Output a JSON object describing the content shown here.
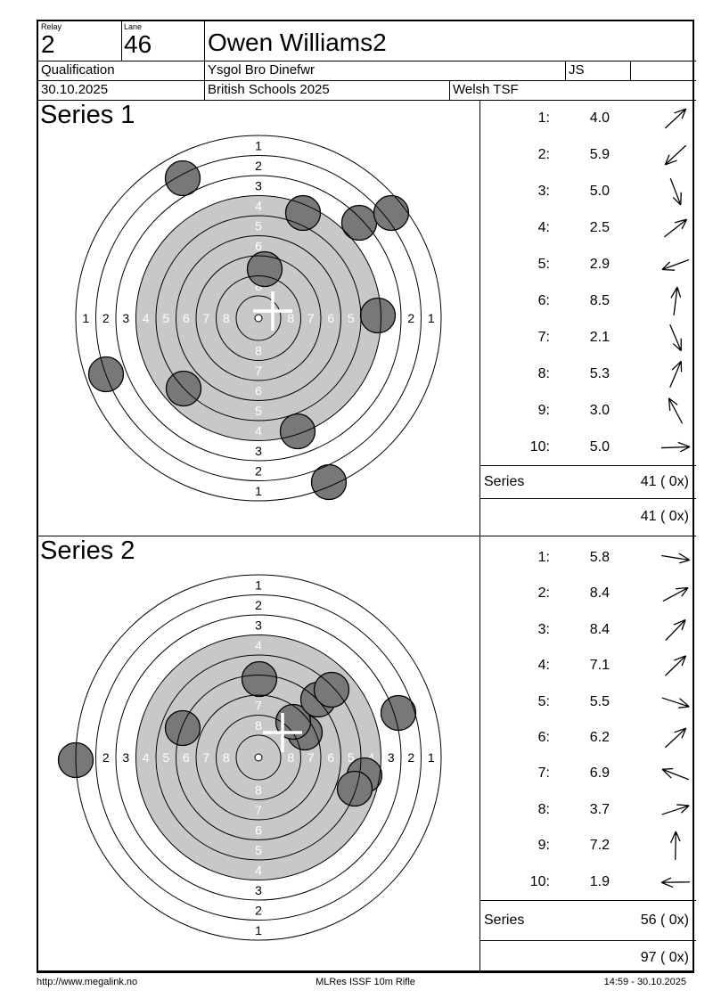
{
  "header": {
    "relay": {
      "label": "Relay",
      "value": "2"
    },
    "lane": {
      "label": "Lane",
      "value": "46"
    },
    "shooter_name": "Owen Williams2",
    "round": "Qualification",
    "club": "Ysgol Bro Dinefwr",
    "class_value": "JS",
    "date": "30.10.2025",
    "competition": "British Schools 2025",
    "organization": "Welsh TSF"
  },
  "footer": {
    "website": "http://www.megalink.no",
    "program": "MLRes ISSF 10m Rifle",
    "timestamp": "14:59 - 30.10.2025"
  },
  "target": {
    "ring_radii": [
      25,
      47.5,
      70,
      92.5,
      115,
      137.5,
      160,
      182.5,
      205
    ],
    "ring_unit": 22.5,
    "outer_radius": 205,
    "gray_radius": 137.5,
    "band_labels": [
      "1",
      "2",
      "3",
      "4",
      "5",
      "6",
      "7",
      "8"
    ],
    "white_label_from_band": 4,
    "shot_radius": 19.5,
    "colors": {
      "gray_zone": "#c8c8c8",
      "shot_fill": "#787878",
      "shot_stroke": "#000000",
      "ring_line": "#000000",
      "cross": "#ffffff",
      "center_dot_fill": "#ffffff"
    }
  },
  "series": [
    {
      "title": "Series 1",
      "shots": [
        {
          "no": "1:",
          "value": "4.0",
          "dir": -43
        },
        {
          "no": "2:",
          "value": "5.9",
          "dir": 137
        },
        {
          "no": "3:",
          "value": "5.0",
          "dir": 69
        },
        {
          "no": "4:",
          "value": "2.5",
          "dir": -38
        },
        {
          "no": "5:",
          "value": "2.9",
          "dir": 160
        },
        {
          "no": "6:",
          "value": "8.5",
          "dir": -83
        },
        {
          "no": "7:",
          "value": "2.1",
          "dir": 67
        },
        {
          "no": "8:",
          "value": "5.3",
          "dir": -67
        },
        {
          "no": "9:",
          "value": "3.0",
          "dir": -118
        },
        {
          "no": "10:",
          "value": "5.0",
          "dir": -2
        }
      ],
      "holes": [
        [
          -85,
          -157
        ],
        [
          50,
          -118
        ],
        [
          113,
          -107
        ],
        [
          149,
          -118
        ],
        [
          7,
          -55
        ],
        [
          134,
          -3
        ],
        [
          -171,
          63
        ],
        [
          -84,
          79
        ],
        [
          44,
          127
        ],
        [
          79,
          184
        ]
      ],
      "cross": [
        16,
        -8
      ],
      "series_row": {
        "label": "Series",
        "value": "41 ( 0x)"
      },
      "total_row": {
        "value": "41 ( 0x)"
      }
    },
    {
      "title": "Series 2",
      "shots": [
        {
          "no": "1:",
          "value": "5.8",
          "dir": 9
        },
        {
          "no": "2:",
          "value": "8.4",
          "dir": -28
        },
        {
          "no": "3:",
          "value": "8.4",
          "dir": -46
        },
        {
          "no": "4:",
          "value": "7.1",
          "dir": -44
        },
        {
          "no": "5:",
          "value": "5.5",
          "dir": 18
        },
        {
          "no": "6:",
          "value": "6.2",
          "dir": -43
        },
        {
          "no": "7:",
          "value": "6.9",
          "dir": -159
        },
        {
          "no": "8:",
          "value": "3.7",
          "dir": -18
        },
        {
          "no": "9:",
          "value": "7.2",
          "dir": -89
        },
        {
          "no": "10:",
          "value": "1.9",
          "dir": 179
        }
      ],
      "holes": [
        [
          1,
          -88
        ],
        [
          52,
          -28
        ],
        [
          39,
          -40
        ],
        [
          67,
          -65
        ],
        [
          82,
          -76
        ],
        [
          -85,
          -33
        ],
        [
          157,
          -50
        ],
        [
          -205,
          3
        ],
        [
          119,
          20
        ],
        [
          108,
          35
        ]
      ],
      "cross": [
        27,
        -28
      ],
      "series_row": {
        "label": "Series",
        "value": "56 ( 0x)"
      },
      "total_row": {
        "value": "97 ( 0x)"
      }
    }
  ]
}
